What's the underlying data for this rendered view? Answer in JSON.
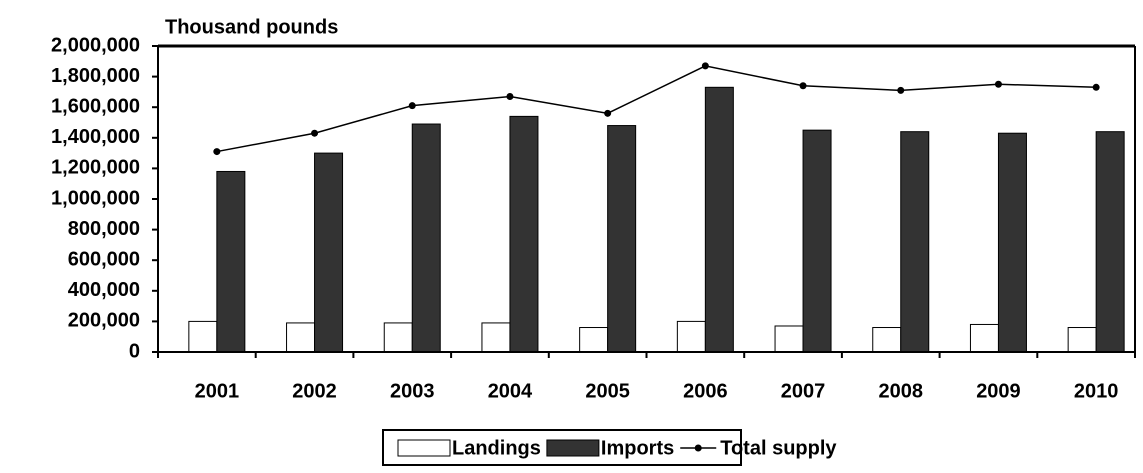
{
  "chart_data": {
    "type": "bar_line",
    "title": "Thousand pounds",
    "categories": [
      "2001",
      "2002",
      "2003",
      "2004",
      "2005",
      "2006",
      "2007",
      "2008",
      "2009",
      "2010"
    ],
    "series": [
      {
        "name": "Landings",
        "type": "bar",
        "color": "#ffffff",
        "values": [
          200000,
          190000,
          190000,
          190000,
          160000,
          200000,
          170000,
          160000,
          180000,
          160000
        ]
      },
      {
        "name": "Imports",
        "type": "bar",
        "color": "#333333",
        "values": [
          1180000,
          1300000,
          1490000,
          1540000,
          1480000,
          1730000,
          1450000,
          1440000,
          1430000,
          1440000
        ]
      },
      {
        "name": "Total supply",
        "type": "line",
        "color": "#000000",
        "values": [
          1310000,
          1430000,
          1610000,
          1670000,
          1560000,
          1870000,
          1740000,
          1710000,
          1750000,
          1730000
        ]
      }
    ],
    "ylim": [
      0,
      2000000
    ],
    "yticks": [
      0,
      {
        "value": 200000,
        "label": "200,000"
      },
      {
        "value": 400000,
        "label": "400,000"
      },
      {
        "value": 600000,
        "label": "600,000"
      },
      {
        "value": 800000,
        "label": "800,000"
      },
      {
        "value": 1000000,
        "label": "1,000,000"
      },
      {
        "value": 1200000,
        "label": "1,200,000"
      },
      {
        "value": 1400000,
        "label": "1,400,000"
      },
      {
        "value": 1600000,
        "label": "1,600,000"
      },
      {
        "value": 1800000,
        "label": "1,800,000"
      },
      {
        "value": 2000000,
        "label": "2,000,000"
      }
    ],
    "grid": false,
    "legend": "bottom"
  }
}
